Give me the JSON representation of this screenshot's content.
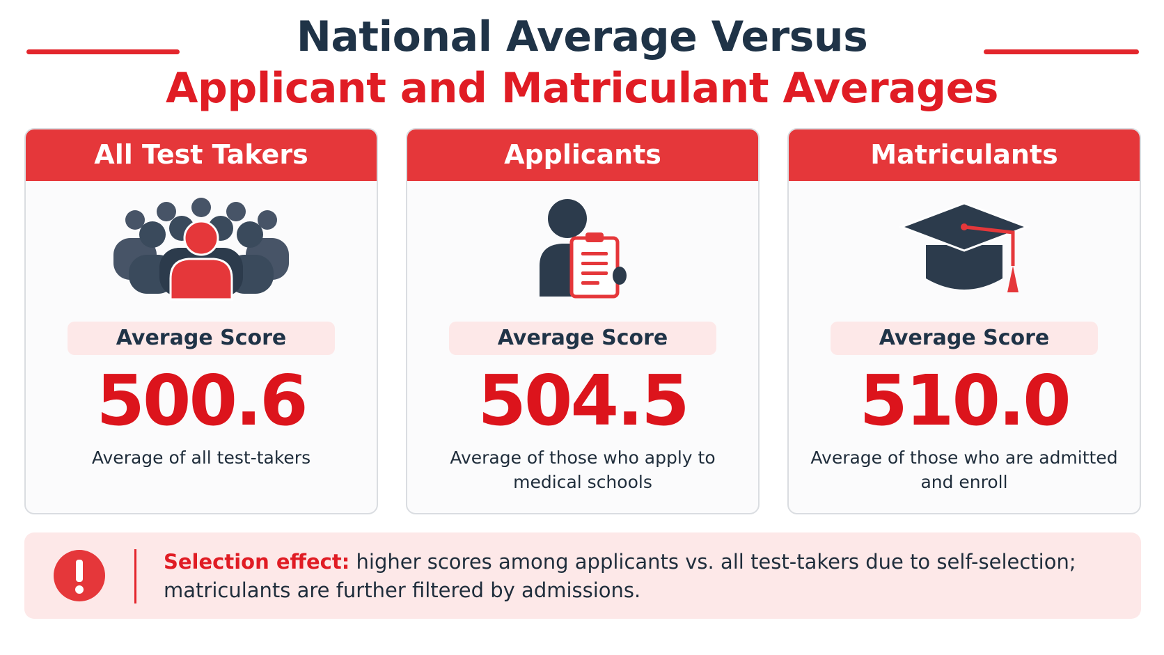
{
  "title": {
    "line1": "National Average Versus",
    "line2": "Applicant and Matriculant Averages"
  },
  "cards": [
    {
      "heading": "All Test Takers",
      "icon": "crowd-icon",
      "label": "Average Score",
      "score": "500.6",
      "description": "Average of all test-takers"
    },
    {
      "heading": "Applicants",
      "icon": "person-clipboard-icon",
      "label": "Average Score",
      "score": "504.5",
      "description": "Average of those who apply to medical schools"
    },
    {
      "heading": "Matriculants",
      "icon": "graduation-cap-icon",
      "label": "Average Score",
      "score": "510.0",
      "description": "Average of those who are admitted and enroll"
    }
  ],
  "note": {
    "icon": "exclamation-icon",
    "lead": "Selection effect:",
    "body": " higher scores among applicants vs. all test-takers due to self-selection; matriculants are further filtered by admissions."
  },
  "colors": {
    "accent_red": "#e01c24",
    "header_red": "#e5373a",
    "navy": "#1f3347",
    "pill_pink": "#fde8e8"
  }
}
